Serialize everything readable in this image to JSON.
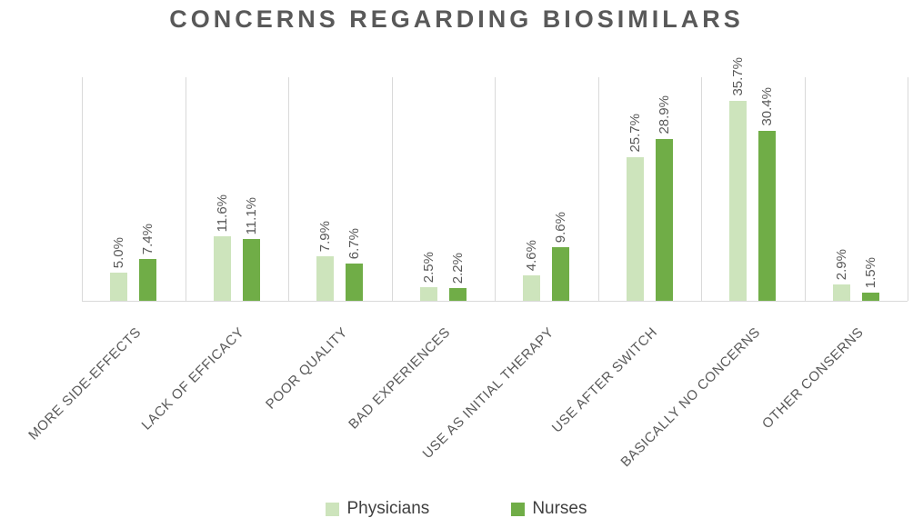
{
  "chart_data": {
    "type": "bar",
    "title": "CONCERNS REGARDING BIOSIMILARS",
    "categories": [
      "MORE SIDE-EFFECTS",
      "LACK OF EFFICACY",
      "POOR QUALITY",
      "BAD EXPERIENCES",
      "USE AS INITIAL THERAPY",
      "USE AFTER SWITCH",
      "BASICALLY NO CONCERNS",
      "OTHER CONSERNS"
    ],
    "series": [
      {
        "name": "Physicians",
        "color": "#cde4bc",
        "values": [
          5.0,
          11.6,
          7.9,
          2.5,
          4.6,
          25.7,
          35.7,
          2.9
        ]
      },
      {
        "name": "Nurses",
        "color": "#70ad47",
        "values": [
          7.4,
          11.1,
          6.7,
          2.2,
          9.6,
          28.9,
          30.4,
          1.5
        ]
      }
    ],
    "value_label_suffix": "%",
    "value_label_decimals": 1,
    "ylim": [
      0,
      40
    ],
    "grid": "vertical-category-separators-only",
    "gridline_color": "#d9d9d9",
    "legend_position": "bottom",
    "text_color": "#595959"
  }
}
